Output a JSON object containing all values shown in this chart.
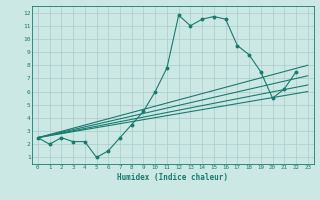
{
  "xlabel": "Humidex (Indice chaleur)",
  "ylabel": "",
  "bg_color": "#cce8e4",
  "grid_color": "#aacccc",
  "line_color": "#1a7a6e",
  "xlim": [
    -0.5,
    23.5
  ],
  "ylim": [
    0.5,
    12.5
  ],
  "xticks": [
    0,
    1,
    2,
    3,
    4,
    5,
    6,
    7,
    8,
    9,
    10,
    11,
    12,
    13,
    14,
    15,
    16,
    17,
    18,
    19,
    20,
    21,
    22,
    23
  ],
  "yticks": [
    1,
    2,
    3,
    4,
    5,
    6,
    7,
    8,
    9,
    10,
    11,
    12
  ],
  "series": [
    {
      "x": [
        0,
        1,
        2,
        3,
        4,
        5,
        6,
        7,
        8,
        9,
        10,
        11,
        12,
        13,
        14,
        15,
        16,
        17,
        18,
        19,
        20,
        21,
        22
      ],
      "y": [
        2.5,
        2.0,
        2.5,
        2.2,
        2.2,
        1.0,
        1.5,
        2.5,
        3.5,
        4.5,
        6.0,
        7.8,
        11.8,
        11.0,
        11.5,
        11.7,
        11.5,
        9.5,
        8.8,
        7.5,
        5.5,
        6.2,
        7.5
      ]
    },
    {
      "x": [
        0,
        23
      ],
      "y": [
        2.5,
        8.0
      ]
    },
    {
      "x": [
        0,
        23
      ],
      "y": [
        2.5,
        7.2
      ]
    },
    {
      "x": [
        0,
        23
      ],
      "y": [
        2.5,
        6.5
      ]
    },
    {
      "x": [
        0,
        23
      ],
      "y": [
        2.5,
        6.0
      ]
    }
  ]
}
